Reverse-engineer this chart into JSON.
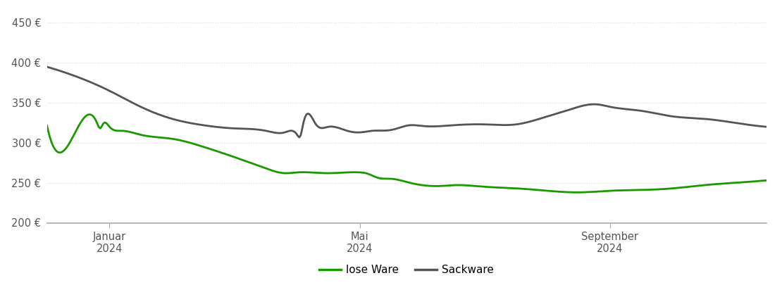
{
  "background_color": "#ffffff",
  "grid_color": "#d8d8d8",
  "ylim": [
    200,
    460
  ],
  "yticks": [
    200,
    250,
    300,
    350,
    400,
    450
  ],
  "x_tick_labels": [
    "Januar\n2024",
    "Mai\n2024",
    "September\n2024"
  ],
  "x_tick_positions": [
    1,
    5,
    9
  ],
  "legend_labels": [
    "lose Ware",
    "Sackware"
  ],
  "legend_colors": [
    "#1a9a00",
    "#555555"
  ],
  "lose_ware": {
    "color": "#1a9a00",
    "linewidth": 2.0,
    "x": [
      0.0,
      0.5,
      0.8,
      0.85,
      0.9,
      1.0,
      1.2,
      1.5,
      2.0,
      2.5,
      3.0,
      3.5,
      3.8,
      4.0,
      4.2,
      4.5,
      4.8,
      5.0,
      5.1,
      5.3,
      5.5,
      5.8,
      6.0,
      6.3,
      6.5,
      7.0,
      7.5,
      8.0,
      8.5,
      9.0,
      9.5,
      10.0,
      10.5,
      11.0,
      11.5
    ],
    "y": [
      322,
      320,
      325,
      318,
      324,
      320,
      315,
      310,
      305,
      295,
      282,
      268,
      262,
      263,
      263,
      262,
      263,
      263,
      262,
      256,
      255,
      250,
      247,
      246,
      247,
      245,
      243,
      240,
      238,
      240,
      241,
      243,
      247,
      250,
      253
    ]
  },
  "sackware": {
    "color": "#555555",
    "linewidth": 2.0,
    "x": [
      0.0,
      0.5,
      1.0,
      1.5,
      2.0,
      2.5,
      3.0,
      3.5,
      3.8,
      4.0,
      4.05,
      4.1,
      4.3,
      4.5,
      4.8,
      5.0,
      5.2,
      5.5,
      5.8,
      6.0,
      6.5,
      7.0,
      7.5,
      8.0,
      8.3,
      8.5,
      8.8,
      9.0,
      9.5,
      10.0,
      10.5,
      11.0,
      11.5
    ],
    "y": [
      395,
      382,
      365,
      345,
      330,
      322,
      318,
      315,
      313,
      310,
      308,
      325,
      323,
      320,
      315,
      313,
      315,
      316,
      322,
      321,
      322,
      323,
      323,
      333,
      340,
      345,
      348,
      345,
      340,
      333,
      330,
      325,
      320
    ]
  }
}
